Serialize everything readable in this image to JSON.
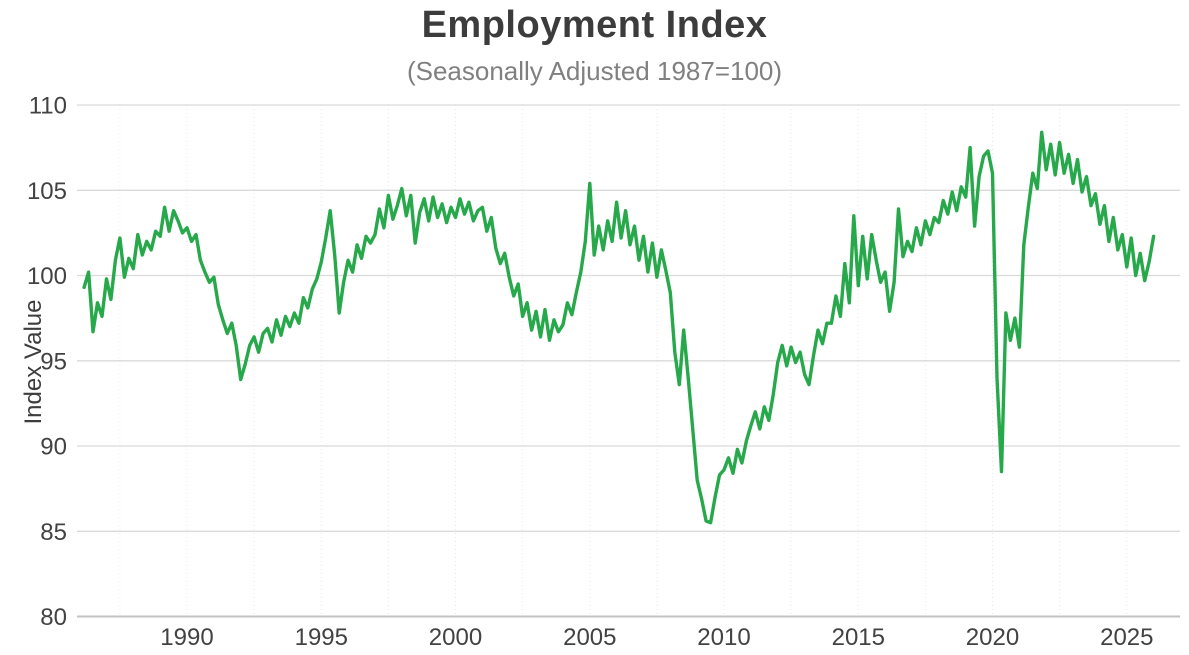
{
  "chart": {
    "title": "Employment Index",
    "subtitle": "(Seasonally Adjusted 1987=100)",
    "ylabel": "Index Value"
  },
  "colors": {
    "line": "#27a94b",
    "title_text": "#3c3c3c",
    "subtitle_text": "#808080",
    "tick_text": "#424242",
    "grid": "#dadada",
    "grid_dotted": "#e8e8e8",
    "axis_line": "#c2c2c2"
  },
  "chart_data": {
    "type": "line",
    "title": "Employment Index",
    "subtitle": "(Seasonally Adjusted 1987=100)",
    "xlabel": "",
    "ylabel": "Index Value",
    "ylim": [
      80,
      110
    ],
    "xlim": [
      1985.9,
      2027.1
    ],
    "y_ticks": [
      80,
      85,
      90,
      95,
      100,
      105,
      110
    ],
    "y_tick_labels": [
      "80",
      "85",
      "90",
      "95",
      "100",
      "105",
      "110"
    ],
    "x_ticks": [
      1990,
      1995,
      2000,
      2005,
      2010,
      2015,
      2020,
      2025
    ],
    "x_tick_labels": [
      "1990",
      "1995",
      "2000",
      "2005",
      "2010",
      "2015",
      "2020",
      "2025"
    ],
    "grid": {
      "horizontal": true,
      "vertical": "dotted",
      "vertical_step_years": 2.5
    },
    "legend": "none",
    "line_color": "#27a94b",
    "series": [
      {
        "name": "Employment Index",
        "x_start": 1986.1667,
        "x_step": 0.1666667,
        "values": [
          99.3,
          100.2,
          96.7,
          98.4,
          97.6,
          99.8,
          98.6,
          100.9,
          102.2,
          99.9,
          101.0,
          100.4,
          102.4,
          101.2,
          102.0,
          101.5,
          102.6,
          102.3,
          104.0,
          102.6,
          103.8,
          103.2,
          102.5,
          102.8,
          102.0,
          102.4,
          100.9,
          100.2,
          99.6,
          99.9,
          98.3,
          97.4,
          96.6,
          97.2,
          95.9,
          93.9,
          94.8,
          95.9,
          96.4,
          95.5,
          96.6,
          96.9,
          96.1,
          97.4,
          96.5,
          97.6,
          97.0,
          97.8,
          97.2,
          98.7,
          98.1,
          99.2,
          99.8,
          100.8,
          102.2,
          103.8,
          101.2,
          97.8,
          99.6,
          100.9,
          100.2,
          101.8,
          101.0,
          102.3,
          101.9,
          102.4,
          103.9,
          102.8,
          104.7,
          103.3,
          104.1,
          105.1,
          103.5,
          104.7,
          101.9,
          103.7,
          104.5,
          103.2,
          104.6,
          103.4,
          104.2,
          103.1,
          104.0,
          103.4,
          104.5,
          103.6,
          104.3,
          103.2,
          103.8,
          104.0,
          102.6,
          103.4,
          101.6,
          100.7,
          101.3,
          99.9,
          98.8,
          99.5,
          97.6,
          98.4,
          96.8,
          97.9,
          96.4,
          98.0,
          96.2,
          97.4,
          96.7,
          97.1,
          98.4,
          97.7,
          99.0,
          100.2,
          102.0,
          105.4,
          101.2,
          102.9,
          101.5,
          103.2,
          102.0,
          104.3,
          102.2,
          103.8,
          101.8,
          102.9,
          100.9,
          102.3,
          100.2,
          101.9,
          99.9,
          101.5,
          100.3,
          99.0,
          95.5,
          93.6,
          96.8,
          94.0,
          91.0,
          88.0,
          86.9,
          85.6,
          85.5,
          87.0,
          88.3,
          88.6,
          89.3,
          88.4,
          89.8,
          89.0,
          90.3,
          91.2,
          92.0,
          91.0,
          92.3,
          91.5,
          93.0,
          94.9,
          95.9,
          94.7,
          95.8,
          94.9,
          95.5,
          94.2,
          93.6,
          95.3,
          96.8,
          96.0,
          97.2,
          97.2,
          98.8,
          97.6,
          100.7,
          98.4,
          103.5,
          99.4,
          102.3,
          99.8,
          102.4,
          100.9,
          99.6,
          100.2,
          97.9,
          99.6,
          103.9,
          101.1,
          102.0,
          101.4,
          102.8,
          101.8,
          103.2,
          102.4,
          103.4,
          103.1,
          104.4,
          103.6,
          104.9,
          103.8,
          105.2,
          104.6,
          107.5,
          102.9,
          105.8,
          107.0,
          107.3,
          106.0,
          94.0,
          88.5,
          97.8,
          96.2,
          97.5,
          95.8,
          101.8,
          104.0,
          106.0,
          105.1,
          108.4,
          106.2,
          107.7,
          105.9,
          107.8,
          106.0,
          107.1,
          105.4,
          106.8,
          104.9,
          105.8,
          104.1,
          104.8,
          103.0,
          104.1,
          102.0,
          103.4,
          101.5,
          102.4,
          100.5,
          102.2,
          100.0,
          101.3,
          99.7,
          100.8,
          102.3
        ]
      }
    ]
  }
}
